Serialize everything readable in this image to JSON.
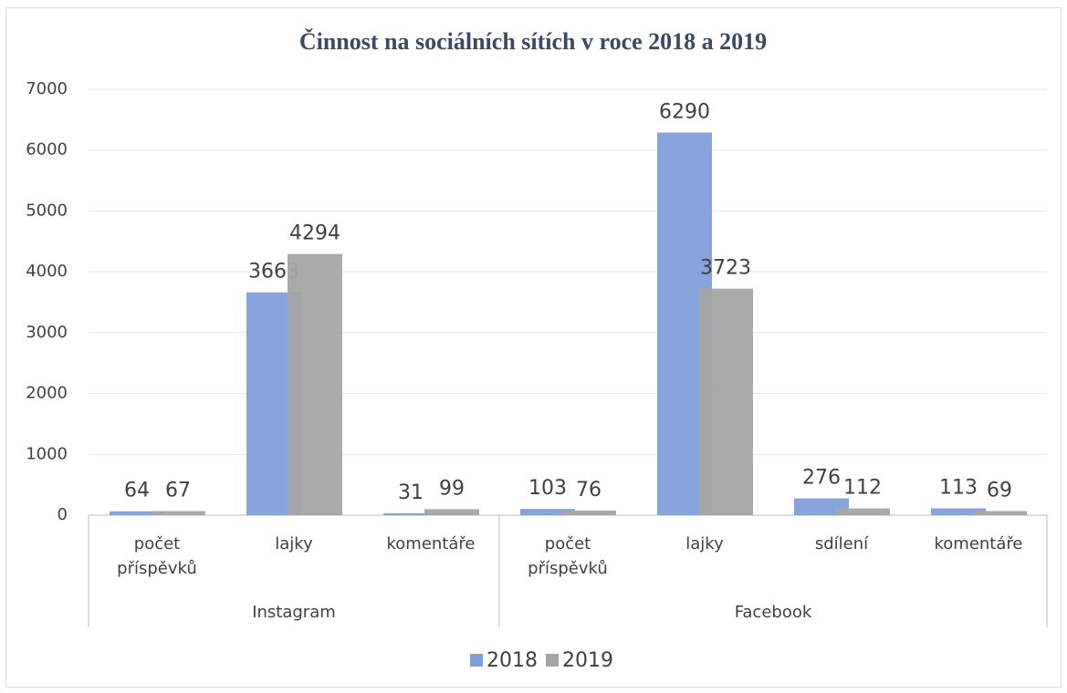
{
  "chart_data": {
    "type": "bar",
    "title": "Činnost na sociálních sítích v roce 2018 a 2019",
    "groups": [
      {
        "name": "Instagram",
        "categories": [
          "počet příspěvků",
          "lajky",
          "komentáře"
        ]
      },
      {
        "name": "Facebook",
        "categories": [
          "počet příspěvků",
          "lajky",
          "sdílení",
          "komentáře"
        ]
      }
    ],
    "series": [
      {
        "name": "2018",
        "color": "#7f9fd9",
        "values": [
          64,
          3663,
          31,
          103,
          6290,
          276,
          113
        ]
      },
      {
        "name": "2019",
        "color": "#a5a5a5",
        "values": [
          67,
          4294,
          99,
          76,
          3723,
          112,
          69
        ]
      }
    ],
    "ylim": [
      0,
      7000
    ],
    "yticks": [
      0,
      1000,
      2000,
      3000,
      4000,
      5000,
      6000,
      7000
    ],
    "grid": true,
    "legend": "bottom"
  }
}
